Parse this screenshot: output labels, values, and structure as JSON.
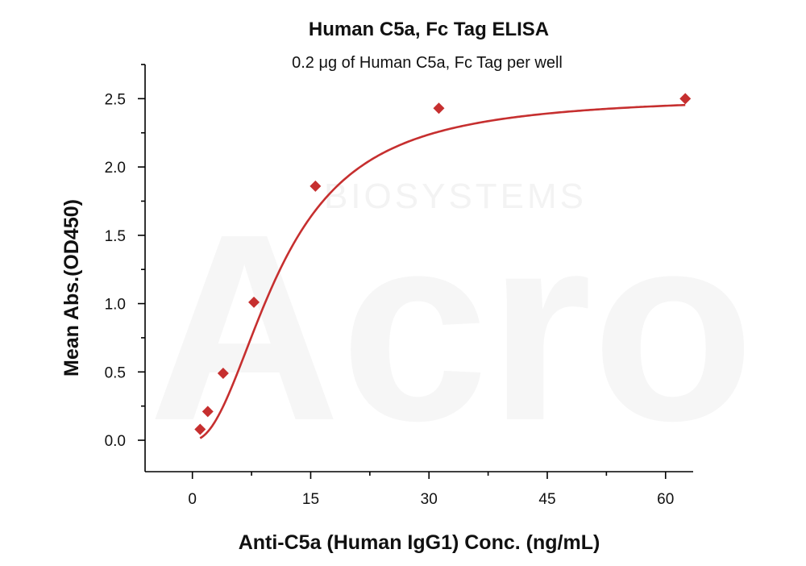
{
  "chart_data": {
    "type": "scatter",
    "title": "Human C5a, Fc Tag ELISA",
    "subtitle": "0.2 μg of Human C5a, Fc Tag per well",
    "xlabel": "Anti-C5a (Human IgG1) Conc. (ng/mL)",
    "ylabel": "Mean Abs.(OD450)",
    "xlim": [
      -6,
      63.5
    ],
    "ylim": [
      -0.23,
      2.75
    ],
    "xticks": [
      0,
      15,
      30,
      45,
      60
    ],
    "yticks": [
      0.0,
      0.5,
      1.0,
      1.5,
      2.0,
      2.5
    ],
    "xtick_labels": [
      "0",
      "15",
      "30",
      "45",
      "60"
    ],
    "ytick_labels": [
      "0.0",
      "0.5",
      "1.0",
      "1.5",
      "2.0",
      "2.5"
    ],
    "grid": false,
    "legend": "none",
    "series": [
      {
        "marker": "diamond",
        "color": "#c62f2f",
        "x": [
          0.98,
          1.95,
          3.9,
          7.8,
          15.6,
          31.25,
          62.5
        ],
        "y": [
          0.08,
          0.21,
          0.49,
          1.01,
          1.86,
          2.43,
          2.5
        ]
      }
    ],
    "fit_curve": {
      "type": "4PL",
      "color": "#c62f2f",
      "bottom": 0.0,
      "top": 2.52,
      "ec50": 11.2,
      "hill": 2.1
    }
  },
  "watermark": {
    "brand": "Acro",
    "sub": "BIOSYSTEMS"
  }
}
